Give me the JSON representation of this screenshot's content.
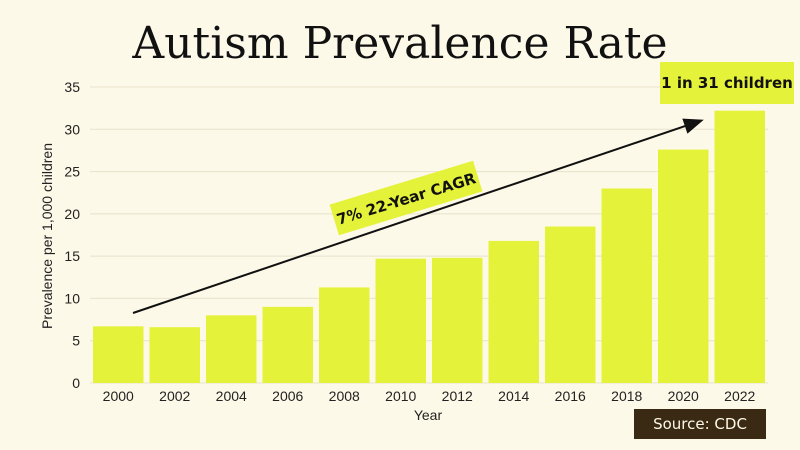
{
  "chart_data": {
    "type": "bar",
    "title": "Autism Prevalence Rate",
    "xlabel": "Year",
    "ylabel": "Prevalence per 1,000 children",
    "ylim": [
      0,
      35
    ],
    "yticks": [
      0,
      5,
      10,
      15,
      20,
      25,
      30,
      35
    ],
    "grid": true,
    "categories": [
      "2000",
      "2002",
      "2004",
      "2006",
      "2008",
      "2010",
      "2012",
      "2014",
      "2016",
      "2018",
      "2020",
      "2022"
    ],
    "values": [
      6.7,
      6.6,
      8.0,
      9.0,
      11.3,
      14.7,
      14.8,
      16.8,
      18.5,
      23.0,
      27.6,
      32.2
    ],
    "bar_color": "#e5f23a",
    "annotations": {
      "trend_label": "7% 22-Year CAGR",
      "top_label": "1 in 31 children"
    }
  },
  "source": "Source: CDC"
}
